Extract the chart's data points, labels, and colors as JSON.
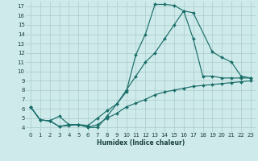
{
  "bg_color": "#ceeaea",
  "grid_color": "#b0d0d0",
  "line_color": "#1a6e6a",
  "xlabel": "Humidex (Indice chaleur)",
  "ylim": [
    3.5,
    17.5
  ],
  "xlim": [
    -0.5,
    23.5
  ],
  "yticks": [
    4,
    5,
    6,
    7,
    8,
    9,
    10,
    11,
    12,
    13,
    14,
    15,
    16,
    17
  ],
  "xticks": [
    0,
    1,
    2,
    3,
    4,
    5,
    6,
    7,
    8,
    9,
    10,
    11,
    12,
    13,
    14,
    15,
    16,
    17,
    18,
    19,
    20,
    21,
    22,
    23
  ],
  "line1_x": [
    0,
    1,
    2,
    3,
    4,
    5,
    6,
    7,
    8,
    9,
    10,
    11,
    12,
    13,
    14,
    15,
    16,
    17,
    18,
    19,
    20,
    21,
    22,
    23
  ],
  "line1_y": [
    6.2,
    4.8,
    4.7,
    4.1,
    4.2,
    4.3,
    4.0,
    4.0,
    5.2,
    6.5,
    7.8,
    11.8,
    14.0,
    17.2,
    17.2,
    17.1,
    16.5,
    13.5,
    9.5,
    9.5,
    9.3,
    9.3,
    9.3,
    9.3
  ],
  "line2_x": [
    0,
    1,
    2,
    3,
    4,
    5,
    6,
    7,
    8,
    9,
    10,
    11,
    12,
    13,
    14,
    15,
    16,
    17,
    19,
    20,
    21,
    22,
    23
  ],
  "line2_y": [
    6.2,
    4.8,
    4.7,
    5.2,
    4.3,
    4.3,
    4.2,
    5.0,
    5.8,
    6.5,
    8.0,
    9.5,
    11.0,
    12.0,
    13.5,
    15.0,
    16.5,
    16.3,
    12.1,
    11.5,
    11.0,
    9.5,
    9.3
  ],
  "line3_x": [
    0,
    1,
    2,
    3,
    4,
    5,
    6,
    7,
    8,
    9,
    10,
    11,
    12,
    13,
    14,
    15,
    16,
    17,
    18,
    19,
    20,
    21,
    22,
    23
  ],
  "line3_y": [
    6.2,
    4.8,
    4.7,
    4.1,
    4.3,
    4.3,
    4.0,
    4.3,
    5.0,
    5.5,
    6.2,
    6.6,
    7.0,
    7.5,
    7.8,
    8.0,
    8.2,
    8.4,
    8.5,
    8.6,
    8.7,
    8.8,
    8.9,
    9.0
  ]
}
